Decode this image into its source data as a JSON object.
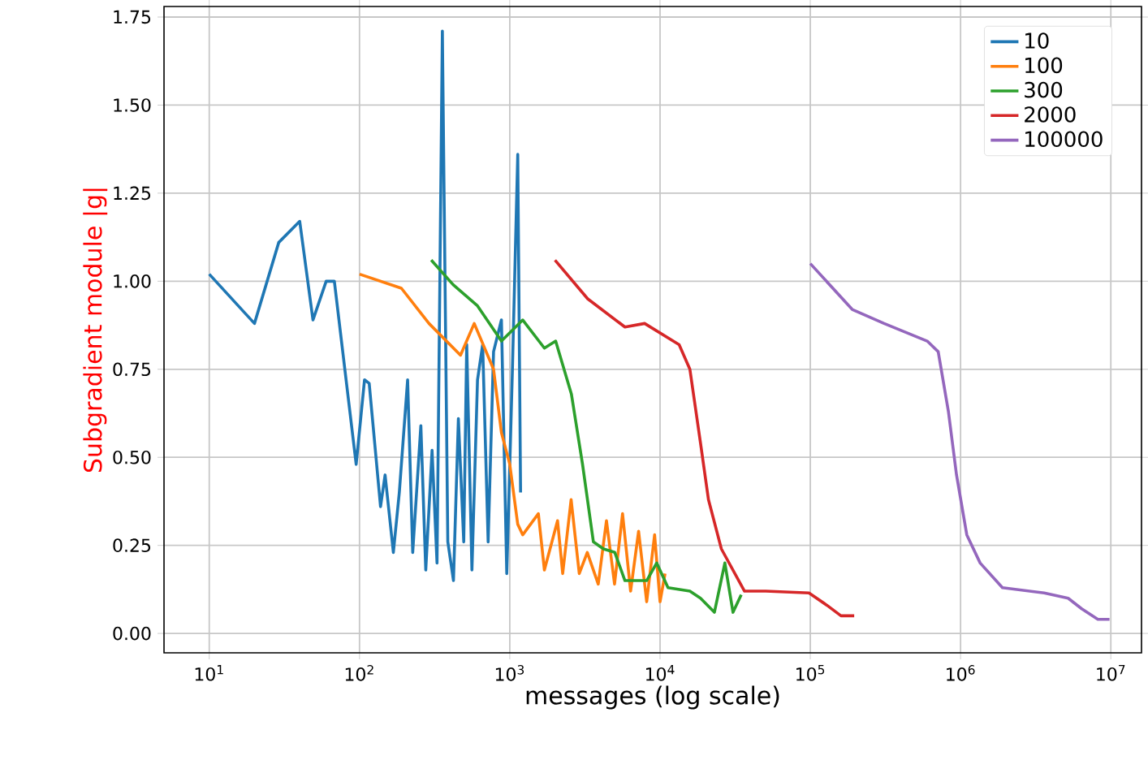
{
  "chart_data": {
    "type": "line",
    "xlabel": "messages (log scale)",
    "ylabel": "Subgradient module |g|",
    "log": "x",
    "grid": true,
    "legend": "top right",
    "xlim": [
      5,
      16000000
    ],
    "ylim": [
      -0.055,
      1.78
    ],
    "xticks": [
      {
        "value": 10,
        "label": "10$^{1}$"
      },
      {
        "value": 100,
        "label": "10$^{2}$"
      },
      {
        "value": 1000,
        "label": "10$^{3}$"
      },
      {
        "value": 10000,
        "label": "10$^{4}$"
      },
      {
        "value": 100000,
        "label": "10$^{5}$"
      },
      {
        "value": 1000000,
        "label": "10$^{6}$"
      },
      {
        "value": 10000000,
        "label": "10$^{7}$"
      }
    ],
    "yticks": [
      {
        "value": 0,
        "label": "0.00"
      },
      {
        "value": 0.25,
        "label": "0.25"
      },
      {
        "value": 0.5,
        "label": "0.50"
      },
      {
        "value": 0.75,
        "label": "0.75"
      },
      {
        "value": 1,
        "label": "1.00"
      },
      {
        "value": 1.25,
        "label": "1.25"
      },
      {
        "value": 1.5,
        "label": "1.50"
      },
      {
        "value": 1.75,
        "label": "1.75"
      }
    ],
    "series": [
      {
        "name": "10",
        "color": "#1f77b4",
        "x": [
          10,
          20,
          29,
          40,
          49,
          60,
          68,
          95,
          108,
          116,
          138,
          148,
          168,
          184,
          209,
          226,
          256,
          276,
          304,
          328,
          356,
          387,
          422,
          455,
          494,
          517,
          560,
          610,
          660,
          718,
          780,
          880,
          955,
          1040,
          1130,
          1180
        ],
        "values": [
          1.02,
          0.88,
          1.11,
          1.17,
          0.89,
          1.0,
          1.0,
          0.48,
          0.72,
          0.71,
          0.36,
          0.45,
          0.23,
          0.4,
          0.72,
          0.23,
          0.59,
          0.18,
          0.52,
          0.2,
          1.71,
          0.26,
          0.15,
          0.61,
          0.26,
          0.82,
          0.18,
          0.72,
          0.82,
          0.26,
          0.8,
          0.89,
          0.17,
          0.74,
          1.36,
          0.4
        ]
      },
      {
        "name": "100",
        "color": "#ff7f0e",
        "x": [
          100,
          190,
          290,
          470,
          580,
          780,
          880,
          1000,
          1130,
          1220,
          1550,
          1700,
          2080,
          2250,
          2560,
          2900,
          3280,
          3880,
          4400,
          4980,
          5630,
          6370,
          7200,
          8150,
          9200,
          10000,
          10800
        ],
        "values": [
          1.02,
          0.98,
          0.88,
          0.79,
          0.88,
          0.75,
          0.57,
          0.48,
          0.31,
          0.28,
          0.34,
          0.18,
          0.32,
          0.17,
          0.38,
          0.17,
          0.23,
          0.14,
          0.32,
          0.14,
          0.34,
          0.12,
          0.29,
          0.09,
          0.28,
          0.09,
          0.17
        ]
      },
      {
        "name": "300",
        "color": "#2ca02c",
        "x": [
          300,
          420,
          610,
          880,
          1220,
          1700,
          2020,
          2570,
          3050,
          3600,
          4200,
          5000,
          5840,
          8150,
          9500,
          11300,
          15800,
          18600,
          23000,
          27000,
          30600,
          34700
        ],
        "values": [
          1.06,
          0.99,
          0.93,
          0.83,
          0.89,
          0.81,
          0.83,
          0.68,
          0.48,
          0.26,
          0.24,
          0.23,
          0.15,
          0.15,
          0.2,
          0.13,
          0.12,
          0.1,
          0.06,
          0.2,
          0.06,
          0.11
        ]
      },
      {
        "name": "2000",
        "color": "#d62728",
        "x": [
          2000,
          3300,
          5840,
          7900,
          13400,
          15800,
          18600,
          21000,
          25600,
          36500,
          50500,
          98000,
          129000,
          160000,
          196000
        ],
        "values": [
          1.06,
          0.95,
          0.87,
          0.88,
          0.82,
          0.75,
          0.54,
          0.38,
          0.24,
          0.12,
          0.12,
          0.115,
          0.08,
          0.05,
          0.05
        ]
      },
      {
        "name": "100000",
        "color": "#9467bd",
        "x": [
          100000,
          190000,
          310000,
          600000,
          710000,
          830000,
          940000,
          1100000,
          1350000,
          1900000,
          3600000,
          5200000,
          6400000,
          8200000,
          9800000
        ],
        "values": [
          1.05,
          0.92,
          0.88,
          0.83,
          0.8,
          0.63,
          0.45,
          0.28,
          0.2,
          0.13,
          0.115,
          0.1,
          0.07,
          0.04,
          0.04
        ]
      }
    ]
  }
}
